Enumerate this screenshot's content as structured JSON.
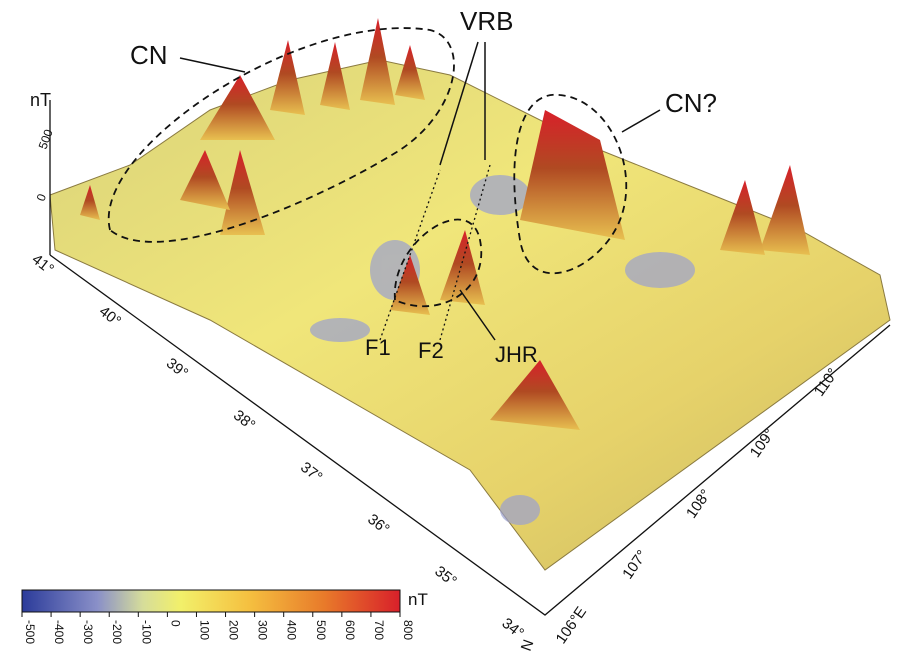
{
  "annotations": {
    "cn": "CN",
    "vrb": "VRB",
    "cn_question": "CN?",
    "f1": "F1",
    "f2": "F2",
    "jhr": "JHR"
  },
  "vertical_axis": {
    "label": "nT",
    "ticks": [
      "500",
      "0"
    ]
  },
  "latitude_axis": {
    "ticks": [
      "41°",
      "40°",
      "39°",
      "38°",
      "37°",
      "36°",
      "35°",
      "34°"
    ],
    "unit": "N"
  },
  "longitude_axis": {
    "ticks": [
      "106°E",
      "107°",
      "108°",
      "109°",
      "110°"
    ]
  },
  "colorbar": {
    "label": "nT",
    "ticks": [
      -500,
      -400,
      -300,
      -200,
      -100,
      0,
      100,
      200,
      300,
      400,
      500,
      600,
      700,
      800
    ]
  }
}
